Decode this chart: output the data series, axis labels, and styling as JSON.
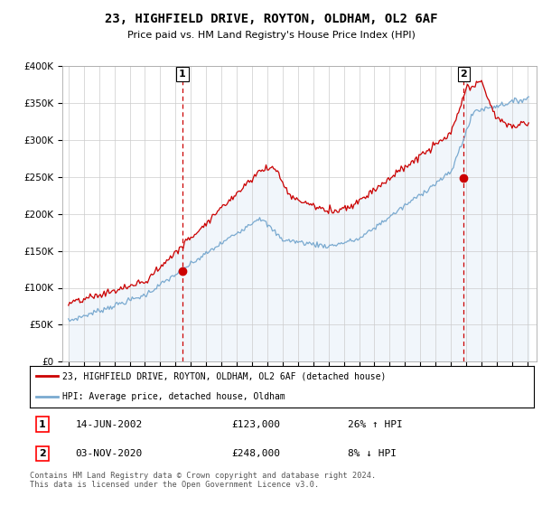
{
  "title": "23, HIGHFIELD DRIVE, ROYTON, OLDHAM, OL2 6AF",
  "subtitle": "Price paid vs. HM Land Registry's House Price Index (HPI)",
  "legend_label_red": "23, HIGHFIELD DRIVE, ROYTON, OLDHAM, OL2 6AF (detached house)",
  "legend_label_blue": "HPI: Average price, detached house, Oldham",
  "annotation1_label": "1",
  "annotation1_date": "14-JUN-2002",
  "annotation1_price": "£123,000",
  "annotation1_hpi": "26% ↑ HPI",
  "annotation2_label": "2",
  "annotation2_date": "03-NOV-2020",
  "annotation2_price": "£248,000",
  "annotation2_hpi": "8% ↓ HPI",
  "footer": "Contains HM Land Registry data © Crown copyright and database right 2024.\nThis data is licensed under the Open Government Licence v3.0.",
  "red_color": "#cc0000",
  "blue_color": "#7aaad0",
  "dashed_red_color": "#cc0000",
  "ylim": [
    0,
    400000
  ],
  "yticks": [
    0,
    50000,
    100000,
    150000,
    200000,
    250000,
    300000,
    350000,
    400000
  ],
  "ytick_labels": [
    "£0",
    "£50K",
    "£100K",
    "£150K",
    "£200K",
    "£250K",
    "£300K",
    "£350K",
    "£400K"
  ],
  "x_start_year": 1995,
  "x_end_year": 2025,
  "sale1_year": 2002.45,
  "sale1_price": 123000,
  "sale2_year": 2020.84,
  "sale2_price": 248000,
  "background_color": "#ffffff",
  "grid_color": "#cccccc",
  "bg_fill_color": "#dce9f5"
}
